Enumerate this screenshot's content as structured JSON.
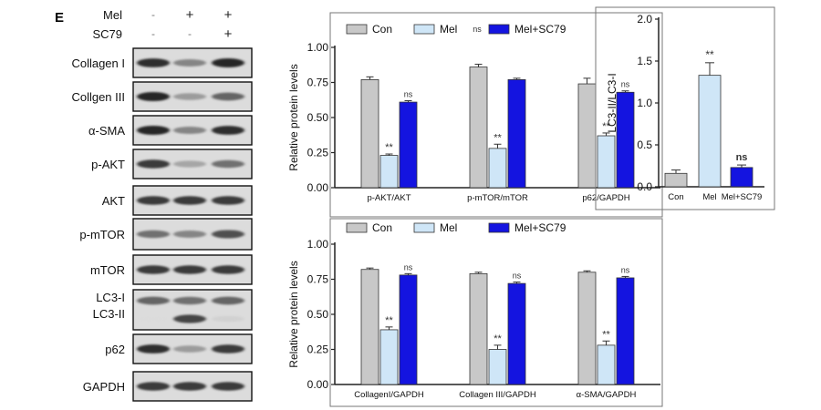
{
  "panel_label": "E",
  "blot": {
    "treatments": [
      {
        "name": "Mel",
        "values": [
          "-",
          "+",
          "+"
        ]
      },
      {
        "name": "SC79",
        "values": [
          "-",
          "-",
          "+"
        ]
      }
    ],
    "rows": [
      {
        "label": "Collagen I",
        "bands": [
          0.85,
          0.45,
          0.9
        ]
      },
      {
        "label": "Collgen III",
        "bands": [
          0.9,
          0.35,
          0.6
        ]
      },
      {
        "label": "α-SMA",
        "bands": [
          0.9,
          0.45,
          0.85
        ]
      },
      {
        "label": "p-AKT",
        "bands": [
          0.8,
          0.3,
          0.55
        ]
      },
      {
        "label": "AKT",
        "bands": [
          0.8,
          0.8,
          0.8
        ]
      },
      {
        "label": "p-mTOR",
        "bands": [
          0.55,
          0.45,
          0.7
        ]
      },
      {
        "label": "mTOR",
        "bands": [
          0.8,
          0.8,
          0.8
        ]
      },
      {
        "label": "LC3-I\nLC3-II",
        "bands": [
          0.6,
          0.55,
          0.6
        ],
        "bands2": [
          0.05,
          0.75,
          0.1
        ]
      },
      {
        "label": "p62",
        "bands": [
          0.85,
          0.35,
          0.8
        ]
      },
      {
        "label": "GAPDH",
        "bands": [
          0.8,
          0.8,
          0.8
        ]
      }
    ]
  },
  "colors": {
    "con": "#c8c8c8",
    "mel": "#cfe6f7",
    "mel_sc79": "#1414e0",
    "axis": "#222222"
  },
  "chart_data": [
    {
      "type": "bar",
      "ylabel": "Relative protein levels",
      "ylim": [
        0,
        1.0
      ],
      "yticks": [
        "0.00",
        "0.25",
        "0.50",
        "0.75",
        "1.00"
      ],
      "categories": [
        "p-AKT/AKT",
        "p-mTOR/mTOR",
        "p62/GAPDH"
      ],
      "legend": [
        "Con",
        "Mel",
        "Mel+SC79"
      ],
      "legend_note": "ns",
      "series": [
        {
          "name": "Con",
          "values": [
            0.77,
            0.86,
            0.74
          ],
          "errors": [
            0.02,
            0.02,
            0.04
          ],
          "labels": [
            "",
            "",
            ""
          ]
        },
        {
          "name": "Mel",
          "values": [
            0.23,
            0.28,
            0.37
          ],
          "errors": [
            0.01,
            0.03,
            0.02
          ],
          "labels": [
            "**",
            "**",
            "**"
          ]
        },
        {
          "name": "Mel+SC79",
          "values": [
            0.61,
            0.77,
            0.68
          ],
          "errors": [
            0.01,
            0.01,
            0.01
          ],
          "labels": [
            "ns",
            "",
            "ns"
          ]
        }
      ]
    },
    {
      "type": "bar",
      "ylabel": "Relative protein levels",
      "ylim": [
        0,
        1.0
      ],
      "yticks": [
        "0.00",
        "0.25",
        "0.50",
        "0.75",
        "1.00"
      ],
      "categories": [
        "CollagenI/GAPDH",
        "Collagen III/GAPDH",
        "α-SMA/GAPDH"
      ],
      "legend": [
        "Con",
        "Mel",
        "Mel+SC79"
      ],
      "legend_note": "",
      "series": [
        {
          "name": "Con",
          "values": [
            0.82,
            0.79,
            0.8
          ],
          "errors": [
            0.01,
            0.01,
            0.01
          ],
          "labels": [
            "",
            "",
            ""
          ]
        },
        {
          "name": "Mel",
          "values": [
            0.39,
            0.25,
            0.28
          ],
          "errors": [
            0.02,
            0.03,
            0.03
          ],
          "labels": [
            "**",
            "**",
            "**"
          ]
        },
        {
          "name": "Mel+SC79",
          "values": [
            0.78,
            0.72,
            0.76
          ],
          "errors": [
            0.01,
            0.01,
            0.01
          ],
          "labels": [
            "ns",
            "ns",
            "ns"
          ]
        }
      ]
    },
    {
      "type": "bar",
      "ylabel": "LC3-II/LC3-I",
      "ylim": [
        0,
        2.0
      ],
      "yticks": [
        "0.0",
        "0.5",
        "1.0",
        "1.5",
        "2.0"
      ],
      "categories": [
        "Con",
        "Mel",
        "Mel+SC79"
      ],
      "series": [
        {
          "name": "",
          "values": [
            0.16,
            1.33,
            0.23
          ],
          "errors": [
            0.04,
            0.15,
            0.03
          ],
          "labels": [
            "",
            "**",
            "ns"
          ]
        }
      ]
    }
  ]
}
